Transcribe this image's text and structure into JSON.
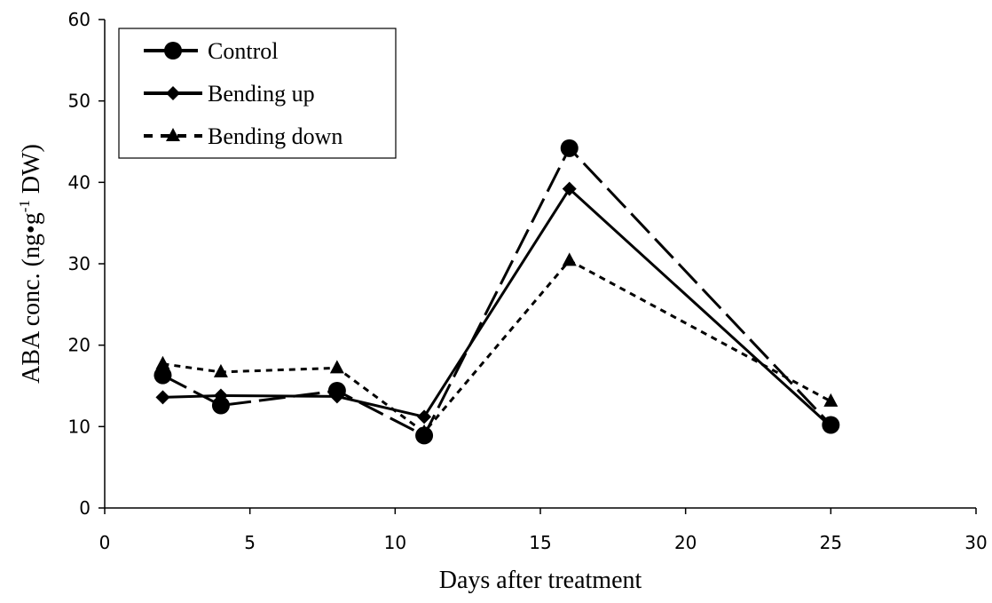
{
  "chart_data": {
    "type": "line",
    "xlabel": "Days after treatment",
    "ylabel_main": "ABA conc. (ng•g",
    "ylabel_sup": "-1",
    "ylabel_tail": " DW)",
    "xlim": [
      0,
      30
    ],
    "ylim": [
      0,
      60
    ],
    "xticks": [
      "0",
      "5",
      "10",
      "15",
      "20",
      "25",
      "30"
    ],
    "yticks": [
      "0",
      "10",
      "20",
      "30",
      "40",
      "50",
      "60"
    ],
    "grid": false,
    "legend_position": "top-left",
    "series": [
      {
        "name": "Control",
        "marker": "circle",
        "line_style": "long-dash",
        "color": "#000000",
        "x": [
          2,
          4,
          8,
          11,
          16,
          25
        ],
        "y": [
          16.3,
          12.6,
          14.4,
          8.9,
          44.2,
          10.2
        ]
      },
      {
        "name": "Bending up",
        "marker": "diamond",
        "line_style": "solid",
        "color": "#000000",
        "x": [
          2,
          4,
          8,
          11,
          16,
          25
        ],
        "y": [
          13.6,
          13.8,
          13.7,
          11.2,
          39.2,
          10.0
        ]
      },
      {
        "name": "Bending down",
        "marker": "triangle",
        "line_style": "dotted",
        "color": "#000000",
        "x": [
          2,
          4,
          8,
          11,
          16,
          25
        ],
        "y": [
          17.7,
          16.7,
          17.2,
          9.3,
          30.4,
          13.1
        ]
      }
    ]
  }
}
